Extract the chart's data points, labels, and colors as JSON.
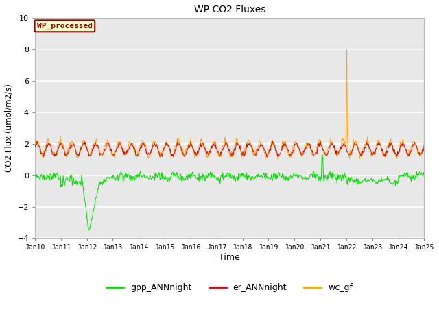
{
  "title": "WP CO2 Fluxes",
  "xlabel": "Time",
  "ylabel": "CO2 Flux (umol/m2/s)",
  "ylim": [
    -4,
    10
  ],
  "yticks": [
    -4,
    -2,
    0,
    2,
    4,
    6,
    8,
    10
  ],
  "xtick_labels": [
    "Jan 10",
    "Jan 11",
    "Jan 12",
    "Jan 13",
    "Jan 14",
    "Jan 15",
    "Jan 16",
    "Jan 17",
    "Jan 18",
    "Jan 19",
    "Jan 20",
    "Jan 21",
    "Jan 22",
    "Jan 23",
    "Jan 24",
    "Jan 25"
  ],
  "annotation_text": "WP_processed",
  "annotation_color": "#8B0000",
  "annotation_bg": "#FFFFCC",
  "annotation_border": "#8B0000",
  "gpp_color": "#00DD00",
  "er_color": "#DD0000",
  "wc_color": "#FFA500",
  "legend_labels": [
    "gpp_ANNnight",
    "er_ANNnight",
    "wc_gf"
  ],
  "bg_color": "#E8E8E8",
  "grid_color": "white",
  "n_points": 720,
  "figsize": [
    6.4,
    4.8
  ],
  "dpi": 100
}
